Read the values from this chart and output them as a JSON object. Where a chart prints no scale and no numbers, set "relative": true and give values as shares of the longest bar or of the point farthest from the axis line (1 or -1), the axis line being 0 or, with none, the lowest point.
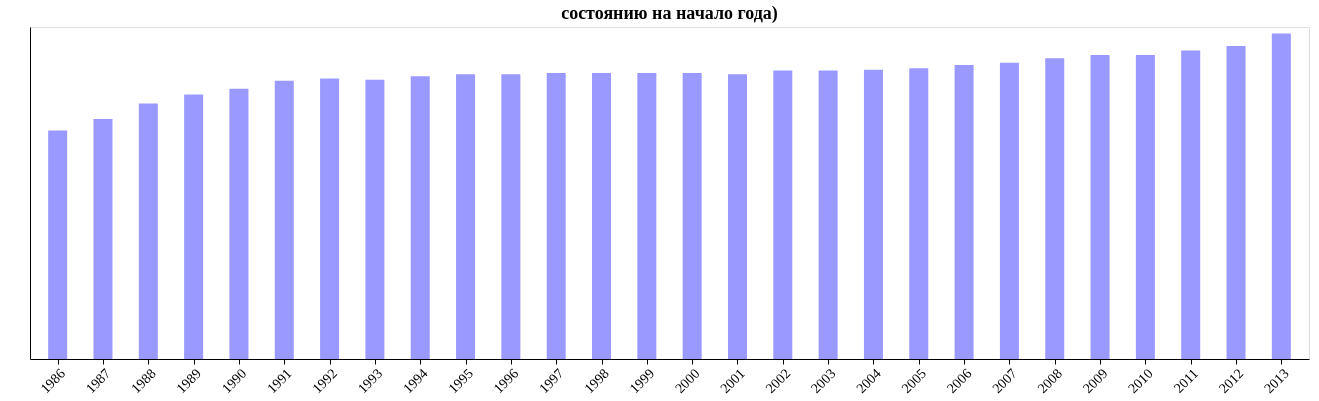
{
  "chart_data": {
    "type": "bar",
    "title": "состоянию на начало года)",
    "relative": true,
    "categories": [
      "1986",
      "1987",
      "1988",
      "1989",
      "1990",
      "1991",
      "1992",
      "1993",
      "1994",
      "1995",
      "1996",
      "1997",
      "1998",
      "1999",
      "2000",
      "2001",
      "2002",
      "2003",
      "2004",
      "2005",
      "2006",
      "2007",
      "2008",
      "2009",
      "2010",
      "2011",
      "2012",
      "2013"
    ],
    "values": [
      0.702,
      0.737,
      0.785,
      0.813,
      0.83,
      0.855,
      0.862,
      0.858,
      0.869,
      0.875,
      0.875,
      0.879,
      0.879,
      0.879,
      0.879,
      0.875,
      0.886,
      0.886,
      0.889,
      0.893,
      0.903,
      0.91,
      0.924,
      0.934,
      0.934,
      0.948,
      0.962,
      1
    ],
    "color": "#9999ff"
  }
}
